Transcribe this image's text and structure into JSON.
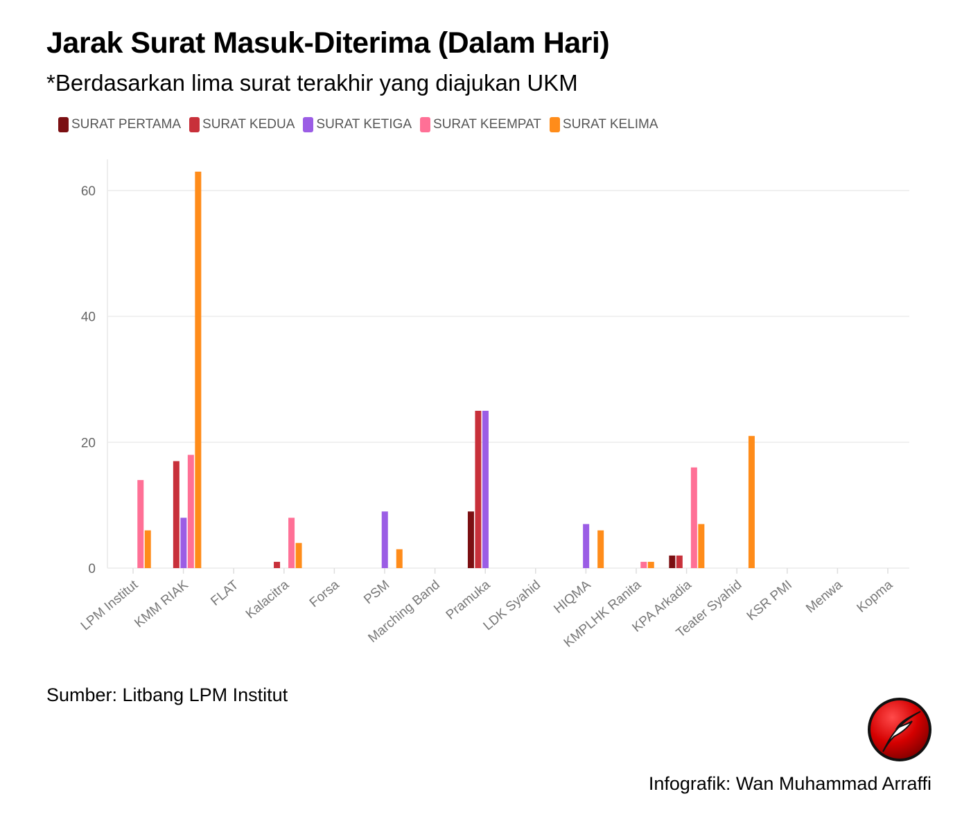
{
  "header": {
    "title": "Jarak Surat Masuk-Diterima (Dalam Hari)",
    "subtitle": "*Berdasarkan lima surat terakhir yang diajukan UKM"
  },
  "footer": {
    "source": "Sumber: Litbang LPM Institut",
    "credit": "Infografik: Wan Muhammad Arraffi"
  },
  "logo": {
    "icon": "quill-pen-logo-icon",
    "colors": [
      "#d40000",
      "#ffffff",
      "#000000"
    ]
  },
  "chart_data": {
    "type": "bar",
    "categories": [
      "LPM Institut",
      "KMM RIAK",
      "FLAT",
      "Kalacitra",
      "Forsa",
      "PSM",
      "Marching Band",
      "Pramuka",
      "LDK Syahid",
      "HIQMA",
      "KMPLHK Ranita",
      "KPA Arkadia",
      "Teater Syahid",
      "KSR PMI",
      "Menwa",
      "Kopma"
    ],
    "series": [
      {
        "name": "SURAT PERTAMA",
        "color": "#7b0f12",
        "values": [
          0,
          0,
          0,
          0,
          0,
          0,
          0,
          9,
          0,
          0,
          0,
          2,
          0,
          0,
          0,
          0
        ]
      },
      {
        "name": "SURAT KEDUA",
        "color": "#c8303a",
        "values": [
          0,
          17,
          0,
          1,
          0,
          0,
          0,
          25,
          0,
          0,
          0,
          2,
          0,
          0,
          0,
          0
        ]
      },
      {
        "name": "SURAT KETIGA",
        "color": "#9b5de5",
        "values": [
          0,
          8,
          0,
          0,
          0,
          9,
          0,
          25,
          0,
          7,
          0,
          0,
          0,
          0,
          0,
          0
        ]
      },
      {
        "name": "SURAT KEEMPAT",
        "color": "#ff7096",
        "values": [
          14,
          18,
          0,
          8,
          0,
          0,
          0,
          0,
          0,
          0,
          1,
          16,
          0,
          0,
          0,
          0
        ]
      },
      {
        "name": "SURAT KELIMA",
        "color": "#ff8c1a",
        "values": [
          6,
          63,
          0,
          4,
          0,
          3,
          0,
          0,
          0,
          6,
          1,
          7,
          21,
          0,
          0,
          0
        ]
      }
    ],
    "yticks": [
      0,
      20,
      40,
      60
    ],
    "ylim": [
      0,
      65
    ],
    "grid": true,
    "legend_position": "top-left",
    "xlabel": "",
    "ylabel": ""
  }
}
